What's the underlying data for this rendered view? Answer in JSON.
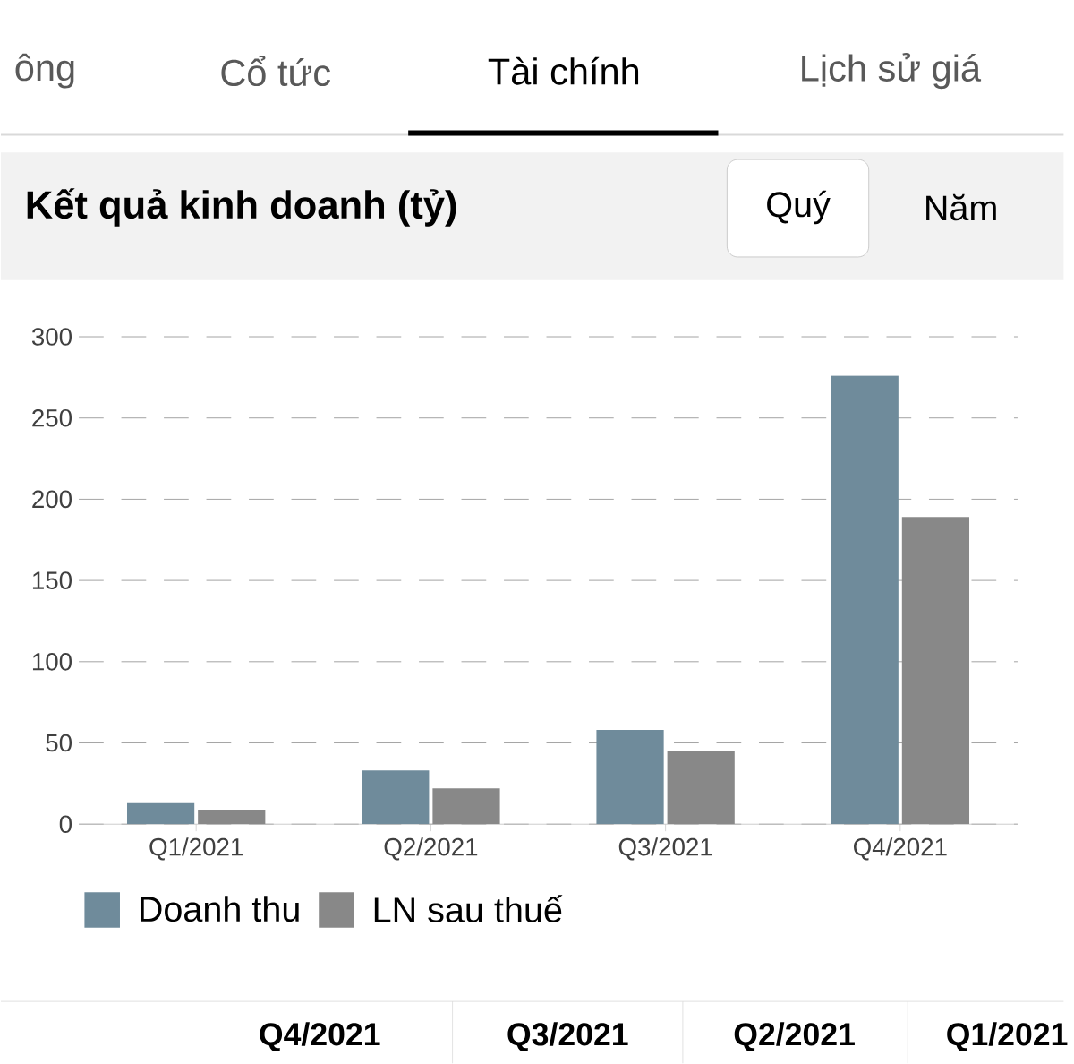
{
  "chart_data": {
    "type": "bar",
    "title": "Kết quả kinh doanh (tỷ)",
    "categories": [
      "Q1/2021",
      "Q2/2021",
      "Q3/2021",
      "Q4/2021"
    ],
    "series": [
      {
        "name": "Doanh thu",
        "color": "#6f8b9b",
        "values": [
          13,
          33,
          58,
          276
        ]
      },
      {
        "name": "LN sau thuế",
        "color": "#888888",
        "values": [
          9,
          22,
          45,
          189
        ]
      }
    ],
    "ylim": [
      0,
      300
    ],
    "yticks": [
      0,
      50,
      100,
      150,
      200,
      250,
      300
    ],
    "grid": "y",
    "legend": "bottom left",
    "annotations": [
      "ông",
      "Cổ tức",
      "Tài chính",
      "Lịch sử giá",
      "Quý",
      "Năm",
      "Q4/2021",
      "Q3/2021",
      "Q2/2021",
      "Q1/2021"
    ]
  }
}
